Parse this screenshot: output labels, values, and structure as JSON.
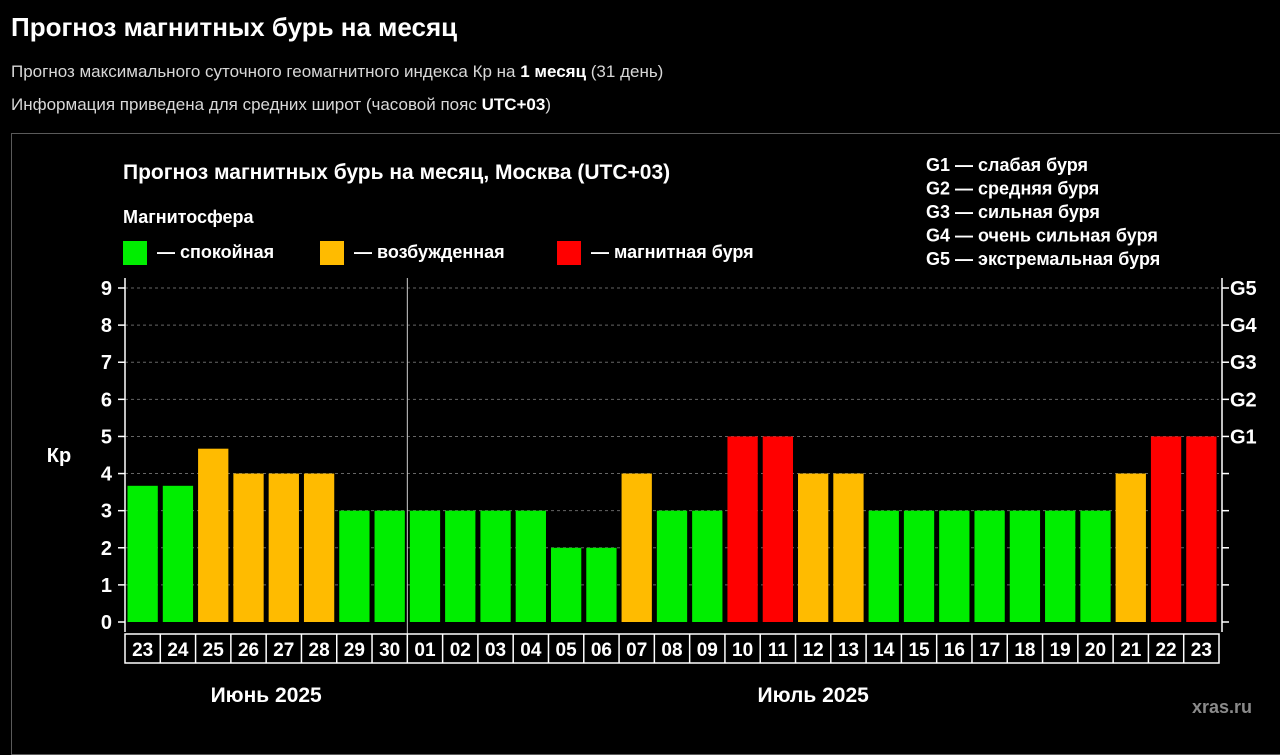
{
  "header": {
    "title": "Прогноз магнитных бурь на месяц",
    "line1": {
      "prefix": "Прогноз максимального суточного геомагнитного индекса Кр на ",
      "bold": "1 месяц",
      "suffix": " (31 день)"
    },
    "line2": {
      "prefix": "Информация приведена для средних широт (часовой пояс ",
      "bold": "UTC+03",
      "suffix": ")"
    }
  },
  "watermark": "xras.ru",
  "colors": {
    "calm": "#00ee00",
    "disturbed": "#ffbb00",
    "storm": "#ff0000",
    "background": "#000000",
    "axis": "#ffffff",
    "grid": "#666666"
  },
  "chart_data": {
    "type": "bar",
    "title": "Прогноз магнитных бурь на месяц, Москва (UTC+03)",
    "ylabel": "Кр",
    "ylim": [
      0,
      9
    ],
    "y_ticks": [
      "0",
      "1",
      "2",
      "3",
      "4",
      "5",
      "6",
      "7",
      "8",
      "9"
    ],
    "right_axis": {
      "labels": [
        {
          "text": "G1",
          "kp": 5
        },
        {
          "text": "G2",
          "kp": 6
        },
        {
          "text": "G3",
          "kp": 7
        },
        {
          "text": "G4",
          "kp": 8
        },
        {
          "text": "G5",
          "kp": 9
        }
      ]
    },
    "grid": true,
    "legend": {
      "title": "Магнитосфера",
      "items": [
        {
          "label": "— спокойная",
          "status": "calm"
        },
        {
          "label": "— возбужденная",
          "status": "disturbed"
        },
        {
          "label": "— магнитная буря",
          "status": "storm"
        }
      ]
    },
    "storm_scale": [
      "G1 — слабая буря",
      "G2 — средняя буря",
      "G3 — сильная буря",
      "G4 — очень сильная буря",
      "G5 — экстремальная буря"
    ],
    "month_labels": [
      {
        "text": "Июнь 2025",
        "first": 0,
        "last": 7
      },
      {
        "text": "Июль 2025",
        "first": 8,
        "last": 30
      }
    ],
    "month_separator_after": 7,
    "categories": [
      "23",
      "24",
      "25",
      "26",
      "27",
      "28",
      "29",
      "30",
      "01",
      "02",
      "03",
      "04",
      "05",
      "06",
      "07",
      "08",
      "09",
      "10",
      "11",
      "12",
      "13",
      "14",
      "15",
      "16",
      "17",
      "18",
      "19",
      "20",
      "21",
      "22",
      "23"
    ],
    "values": [
      3.67,
      3.67,
      4.67,
      4,
      4,
      4,
      3,
      3,
      3,
      3,
      3,
      3,
      2,
      2,
      4,
      3,
      3,
      5,
      5,
      4,
      4,
      3,
      3,
      3,
      3,
      3,
      3,
      3,
      4,
      5,
      5
    ],
    "status": [
      "calm",
      "calm",
      "disturbed",
      "disturbed",
      "disturbed",
      "disturbed",
      "calm",
      "calm",
      "calm",
      "calm",
      "calm",
      "calm",
      "calm",
      "calm",
      "disturbed",
      "calm",
      "calm",
      "storm",
      "storm",
      "disturbed",
      "disturbed",
      "calm",
      "calm",
      "calm",
      "calm",
      "calm",
      "calm",
      "calm",
      "disturbed",
      "storm",
      "storm"
    ]
  }
}
